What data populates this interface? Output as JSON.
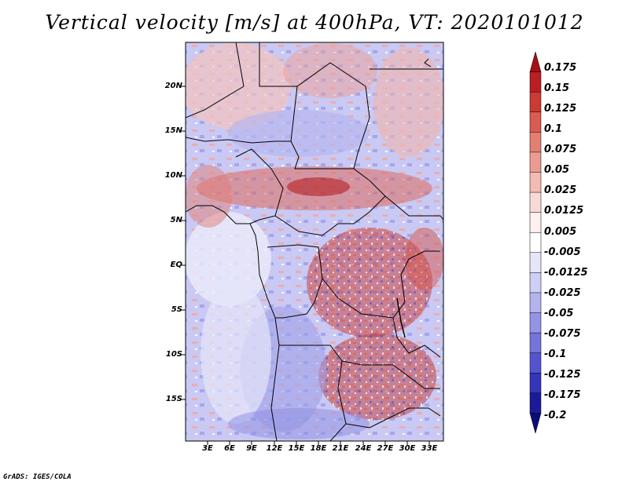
{
  "title": "Vertical velocity [m/s] at 400hPa, VT: 2020101012",
  "footer": "GrADS: IGES/COLA",
  "map": {
    "lat_labels": [
      "20N",
      "15N",
      "10N",
      "5N",
      "EQ",
      "5S",
      "10S",
      "15S"
    ],
    "lon_labels": [
      "3E",
      "6E",
      "9E",
      "12E",
      "15E",
      "18E",
      "21E",
      "24E",
      "27E",
      "30E",
      "33E"
    ]
  },
  "colorbar": {
    "labels": [
      "0.175",
      "0.15",
      "0.125",
      "0.1",
      "0.075",
      "0.05",
      "0.025",
      "0.0125",
      "0.005",
      "-0.005",
      "-0.0125",
      "-0.025",
      "-0.05",
      "-0.075",
      "-0.1",
      "-0.125",
      "-0.175",
      "-0.2"
    ],
    "colors": [
      "#a50f15",
      "#bc1f23",
      "#cb3a35",
      "#d95b52",
      "#e47d72",
      "#ec9b93",
      "#f4bab4",
      "#f9d9d6",
      "#fdf0ee",
      "#ffffff",
      "#e6e6fa",
      "#cfcff5",
      "#b3b3ee",
      "#9494e6",
      "#7474db",
      "#5454cf",
      "#3535b8",
      "#1b1b9a",
      "#0c0c78"
    ]
  }
}
